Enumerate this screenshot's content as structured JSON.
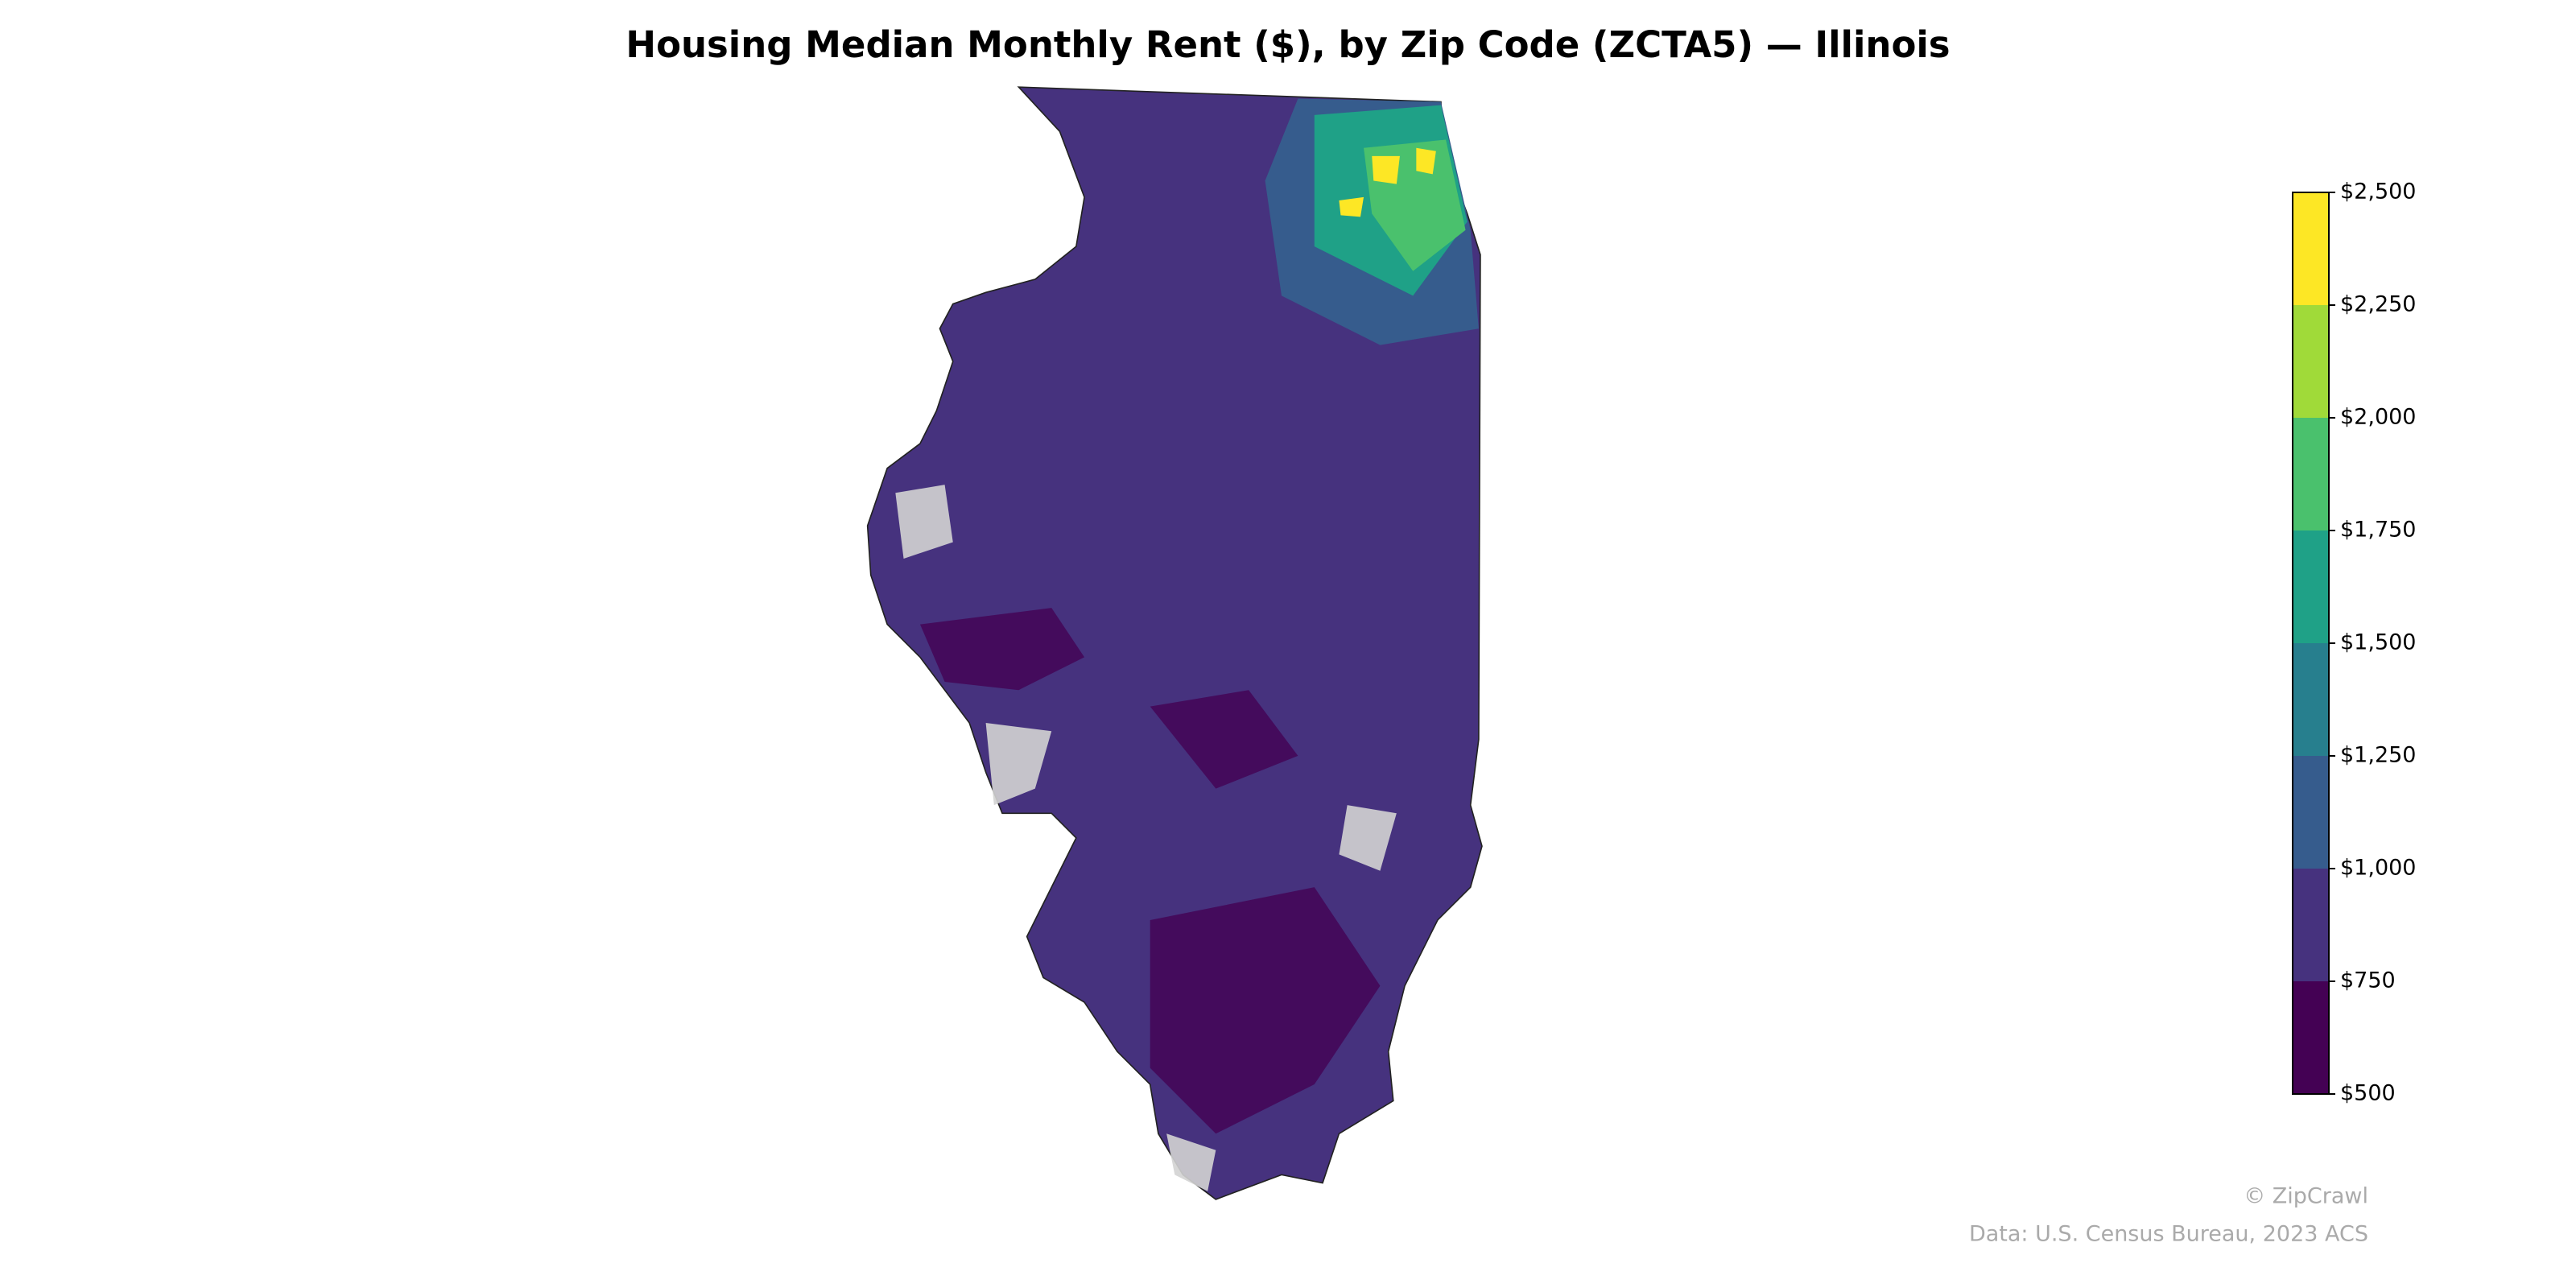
{
  "map": {
    "type": "choropleth",
    "title": "Housing Median Monthly Rent ($), by Zip Code (ZCTA5) — Illinois",
    "colorbar": {
      "lim": [
        500,
        2500
      ],
      "ticks": [
        {
          "value": 500,
          "label": "$500"
        },
        {
          "value": 750,
          "label": "$750"
        },
        {
          "value": 1000,
          "label": "$1,000"
        },
        {
          "value": 1250,
          "label": "$1,250"
        },
        {
          "value": 1500,
          "label": "$1,500"
        },
        {
          "value": 1750,
          "label": "$1,750"
        },
        {
          "value": 2000,
          "label": "$2,000"
        },
        {
          "value": 2250,
          "label": "$2,250"
        },
        {
          "value": 2500,
          "label": "$2,500"
        }
      ],
      "colors": [
        "#440154",
        "#46327e",
        "#365c8d",
        "#277f8e",
        "#1fa187",
        "#4ac16d",
        "#a0da39",
        "#fde725"
      ]
    },
    "credit": "© ZipCrawl",
    "source": "Data: U.S. Census Bureau, 2023 ACS"
  }
}
